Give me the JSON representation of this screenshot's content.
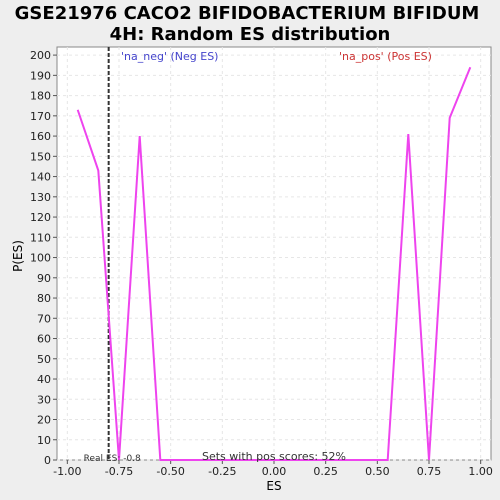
{
  "chart_data": {
    "type": "line",
    "title_line1": "GSE21976 CACO2 BIFIDOBACTERIUM BIFIDUM",
    "title_line2": "4H: Random ES distribution",
    "xlabel": "ES",
    "ylabel": "P(ES)",
    "xlim": [
      -1.05,
      1.05
    ],
    "ylim": [
      0,
      204
    ],
    "x_ticks": [
      "-1.00",
      "-0.75",
      "-0.50",
      "-0.25",
      "0.00",
      "0.25",
      "0.50",
      "0.75",
      "1.00"
    ],
    "x_tick_values": [
      -1.0,
      -0.75,
      -0.5,
      -0.25,
      0.0,
      0.25,
      0.5,
      0.75,
      1.0
    ],
    "y_ticks": [
      0,
      10,
      20,
      30,
      40,
      50,
      60,
      70,
      80,
      90,
      100,
      110,
      120,
      130,
      140,
      150,
      160,
      170,
      180,
      190,
      200
    ],
    "grid": true,
    "legend": {
      "neg_label": "'na_neg' (Neg ES)",
      "pos_label": "'na_pos' (Pos ES)",
      "neg_color": "#4444cc",
      "pos_color": "#cc3333"
    },
    "series": [
      {
        "color": "#ee44ee",
        "x": [
          -0.95,
          -0.85,
          -0.75,
          -0.65,
          -0.55,
          -0.45,
          -0.35,
          -0.25,
          -0.15,
          -0.05,
          0.05,
          0.15,
          0.25,
          0.35,
          0.45,
          0.55,
          0.65,
          0.75,
          0.85,
          0.95
        ],
        "y": [
          173,
          143,
          0,
          160,
          0,
          0,
          0,
          0,
          0,
          0,
          0,
          0,
          0,
          0,
          0,
          0,
          161,
          0,
          169,
          194
        ]
      }
    ],
    "real_es": {
      "value": -0.8,
      "label": "Real ES: -0.8",
      "color": "#333333"
    },
    "footer_note": "Sets with pos scores: 52%"
  }
}
